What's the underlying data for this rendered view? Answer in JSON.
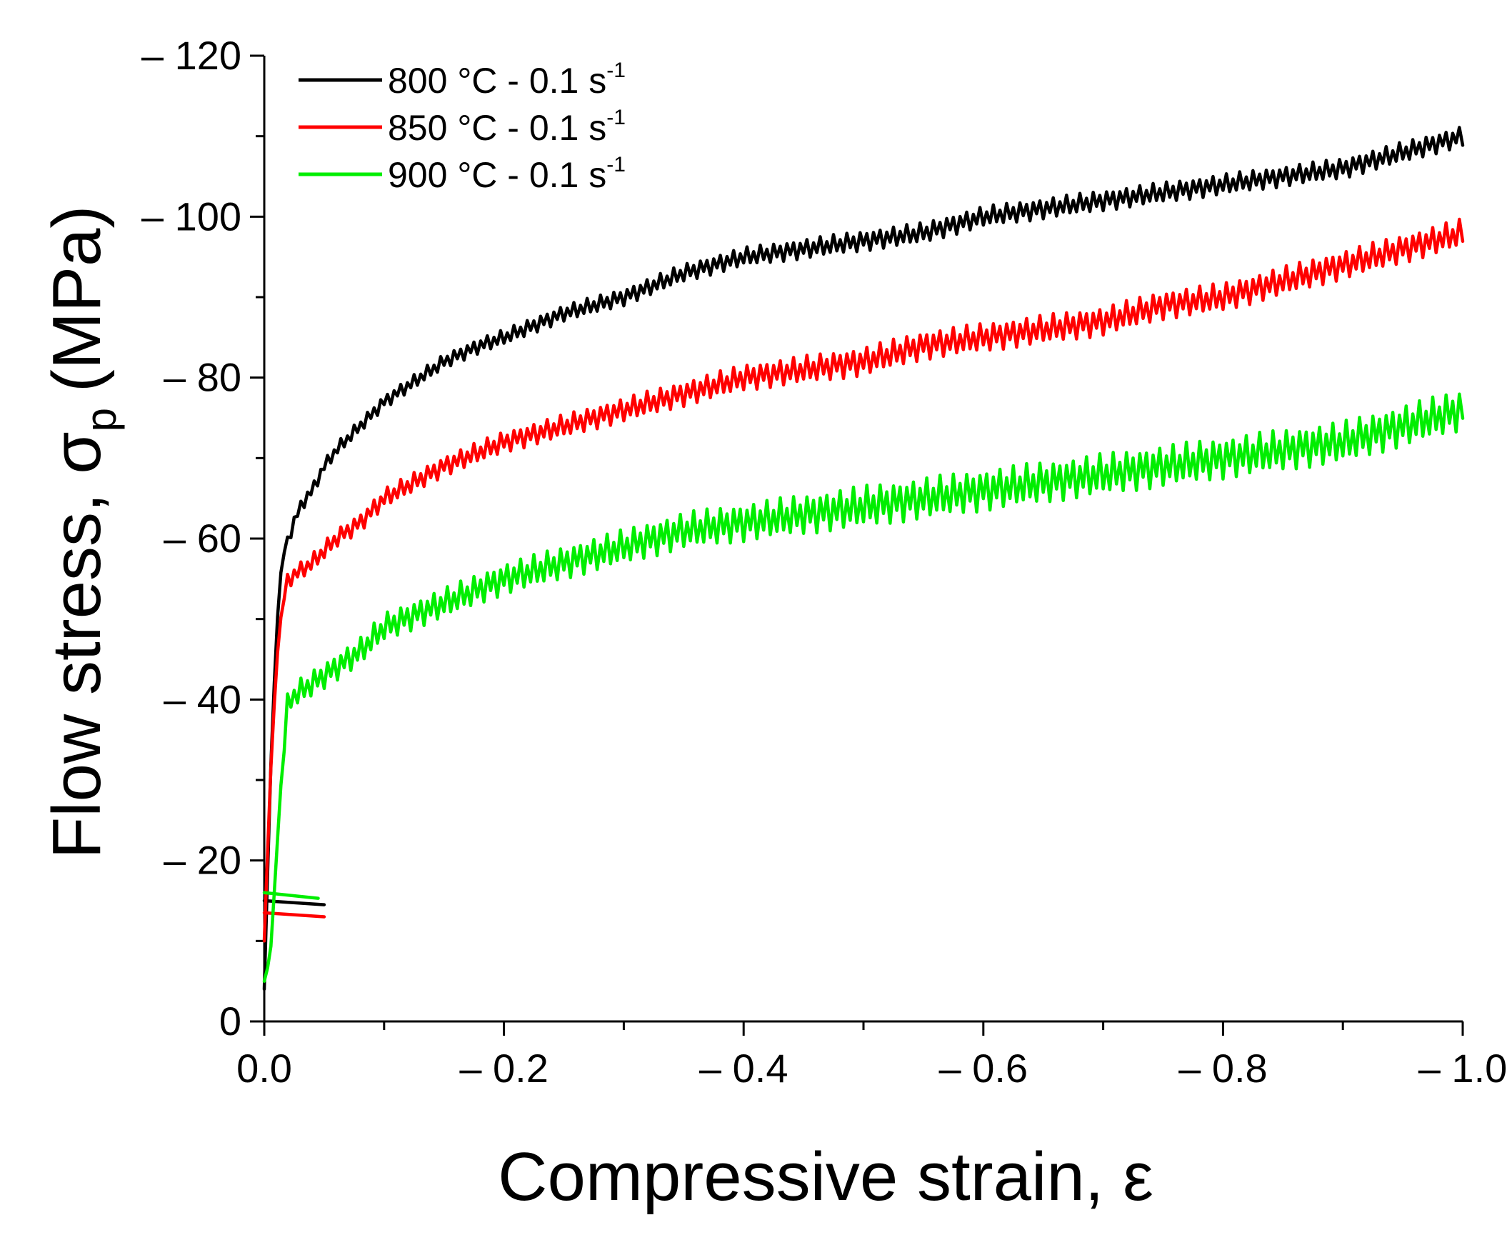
{
  "chart_data": {
    "type": "line",
    "title": "",
    "xlabel": "Compressive strain, ε",
    "ylabel": {
      "main": "Flow stress, σ",
      "subscript": "p",
      "unit": "(MPa)"
    },
    "xlim": [
      0,
      -1.0
    ],
    "ylim": [
      0,
      -120
    ],
    "x_tick_labels": [
      "0.0",
      "– 0.2",
      "– 0.4",
      "– 0.6",
      "– 0.8",
      "– 1.0"
    ],
    "y_tick_labels": [
      "0",
      "– 20",
      "– 40",
      "– 60",
      "– 80",
      "– 100",
      "– 120"
    ],
    "grid": false,
    "legend_position": "top-left",
    "series": [
      {
        "name": "800 °C - 0.1 s",
        "exponent": "-1",
        "color": "#000000",
        "tail_strain": [
          0.0,
          -0.05
        ],
        "tail_stress": [
          -15.0,
          -14.5
        ],
        "strain": [
          0.0,
          -0.005,
          -0.01,
          -0.015,
          -0.02,
          -0.03,
          -0.04,
          -0.05,
          -0.06,
          -0.08,
          -0.1,
          -0.12,
          -0.15,
          -0.18,
          -0.2,
          -0.25,
          -0.3,
          -0.35,
          -0.4,
          -0.45,
          -0.5,
          -0.55,
          -0.6,
          -0.65,
          -0.7,
          -0.75,
          -0.8,
          -0.85,
          -0.9,
          -0.95,
          -1.0
        ],
        "stress": [
          -4,
          -30,
          -48,
          -58,
          -60,
          -64,
          -66,
          -69,
          -71,
          -74,
          -77,
          -79,
          -82,
          -84,
          -85,
          -88,
          -90,
          -93,
          -95,
          -96,
          -97,
          -98,
          -100,
          -101,
          -102,
          -103,
          -104,
          -105,
          -106,
          -108,
          -110
        ],
        "oscillation": 1.3
      },
      {
        "name": "850 °C - 0.1 s",
        "exponent": "-1",
        "color": "#ff0000",
        "tail_strain": [
          0.0,
          -0.05
        ],
        "tail_stress": [
          -13.5,
          -13.0
        ],
        "strain": [
          0.0,
          -0.005,
          -0.01,
          -0.015,
          -0.02,
          -0.03,
          -0.04,
          -0.06,
          -0.08,
          -0.1,
          -0.15,
          -0.2,
          -0.25,
          -0.3,
          -0.35,
          -0.4,
          -0.45,
          -0.5,
          -0.55,
          -0.6,
          -0.65,
          -0.7,
          -0.75,
          -0.8,
          -0.85,
          -0.9,
          -0.95,
          -1.0
        ],
        "stress": [
          -10,
          -30,
          -44,
          -52,
          -55,
          -56,
          -57,
          -60,
          -62,
          -65,
          -69,
          -72,
          -74,
          -76,
          -78,
          -80,
          -81,
          -82,
          -84,
          -85,
          -86,
          -87,
          -89,
          -90,
          -92,
          -94,
          -96,
          -98
        ],
        "oscillation": 1.8
      },
      {
        "name": "900 °C - 0.1 s",
        "exponent": "-1",
        "color": "#00ee00",
        "tail_strain": [
          0.0,
          -0.045
        ],
        "tail_stress": [
          -16.0,
          -15.3
        ],
        "strain": [
          0.0,
          -0.005,
          -0.01,
          -0.015,
          -0.02,
          -0.03,
          -0.04,
          -0.06,
          -0.08,
          -0.1,
          -0.15,
          -0.2,
          -0.25,
          -0.3,
          -0.35,
          -0.4,
          -0.45,
          -0.5,
          -0.55,
          -0.6,
          -0.65,
          -0.7,
          -0.75,
          -0.8,
          -0.85,
          -0.9,
          -0.95,
          -1.0
        ],
        "stress": [
          -5,
          -8,
          -20,
          -32,
          -40,
          -41,
          -42,
          -44,
          -46,
          -49,
          -52,
          -55,
          -57,
          -59,
          -61,
          -62,
          -63,
          -64,
          -65,
          -66,
          -67,
          -68,
          -69,
          -70,
          -71,
          -72,
          -74,
          -76
        ],
        "oscillation": 2.6
      }
    ]
  }
}
